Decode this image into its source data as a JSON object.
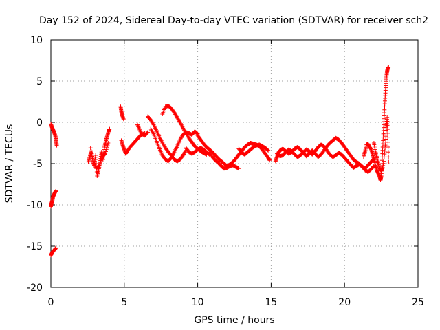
{
  "chart_data": {
    "type": "scatter",
    "title": "Day 152 of 2024, Sidereal Day-to-day VTEC variation (SDTVAR) for receiver sch2",
    "xlabel": "GPS time / hours",
    "ylabel": "SDTVAR / TECUs",
    "xlim": [
      0,
      25
    ],
    "ylim": [
      -20,
      10
    ],
    "x_ticks": [
      0,
      5,
      10,
      15,
      20,
      25
    ],
    "y_ticks": [
      -20,
      -15,
      -10,
      -5,
      0,
      5,
      10
    ],
    "x_tick_labels": [
      "0",
      "5",
      "10",
      "15",
      "20",
      "25"
    ],
    "y_tick_labels": [
      "-20",
      "-15",
      "-10",
      "-5",
      "0",
      "5",
      "10"
    ],
    "grid": true,
    "marker": "+",
    "color": "#ff0000",
    "series": [
      {
        "name": "SDTVAR",
        "segments": [
          [
            [
              0.0,
              -0.2
            ],
            [
              0.08,
              -0.6
            ],
            [
              0.15,
              -0.9
            ],
            [
              0.22,
              -1.2
            ],
            [
              0.3,
              -1.6
            ],
            [
              0.36,
              -2.2
            ],
            [
              0.4,
              -2.8
            ]
          ],
          [
            [
              0.0,
              -10.2
            ],
            [
              0.05,
              -9.8
            ],
            [
              0.1,
              -9.5
            ],
            [
              0.15,
              -9.0
            ],
            [
              0.2,
              -8.8
            ],
            [
              0.28,
              -8.5
            ],
            [
              0.35,
              -8.3
            ]
          ],
          [
            [
              0.0,
              -16.1
            ],
            [
              0.06,
              -15.9
            ],
            [
              0.12,
              -15.7
            ],
            [
              0.2,
              -15.5
            ],
            [
              0.28,
              -15.4
            ],
            [
              0.34,
              -15.2
            ]
          ],
          [
            [
              2.55,
              -4.8
            ],
            [
              2.65,
              -4.2
            ],
            [
              2.75,
              -3.5
            ],
            [
              2.85,
              -4.6
            ],
            [
              2.95,
              -5.2
            ],
            [
              3.05,
              -4.0
            ],
            [
              3.15,
              -6.5
            ],
            [
              3.25,
              -5.8
            ],
            [
              3.35,
              -4.9
            ],
            [
              3.45,
              -3.6
            ],
            [
              3.55,
              -4.5
            ],
            [
              3.65,
              -3.0
            ],
            [
              3.75,
              -2.2
            ],
            [
              3.85,
              -1.6
            ],
            [
              3.95,
              -1.0
            ],
            [
              4.0,
              -0.8
            ]
          ],
          [
            [
              2.7,
              -3.1
            ],
            [
              2.9,
              -4.8
            ],
            [
              3.1,
              -5.6
            ],
            [
              3.3,
              -5.2
            ],
            [
              3.5,
              -4.2
            ],
            [
              3.7,
              -3.8
            ],
            [
              3.9,
              -2.5
            ]
          ],
          [
            [
              4.75,
              1.9
            ],
            [
              4.8,
              1.3
            ],
            [
              4.85,
              0.9
            ],
            [
              4.95,
              0.4
            ]
          ],
          [
            [
              4.8,
              -2.2
            ],
            [
              4.9,
              -2.8
            ],
            [
              5.0,
              -3.3
            ],
            [
              5.1,
              -3.8
            ],
            [
              5.2,
              -3.5
            ],
            [
              5.4,
              -3.0
            ],
            [
              5.6,
              -2.6
            ],
            [
              5.8,
              -2.2
            ],
            [
              6.0,
              -1.8
            ],
            [
              6.2,
              -1.4
            ],
            [
              6.4,
              -1.6
            ],
            [
              6.6,
              -1.2
            ]
          ],
          [
            [
              5.9,
              -0.3
            ],
            [
              6.05,
              -0.9
            ],
            [
              6.2,
              -1.5
            ],
            [
              6.4,
              -1.3
            ]
          ],
          [
            [
              6.6,
              0.7
            ],
            [
              6.8,
              0.3
            ],
            [
              7.0,
              -0.3
            ],
            [
              7.2,
              -1.0
            ],
            [
              7.4,
              -1.8
            ],
            [
              7.6,
              -2.5
            ],
            [
              7.8,
              -3.1
            ],
            [
              8.0,
              -3.6
            ],
            [
              8.2,
              -4.0
            ],
            [
              8.4,
              -4.5
            ],
            [
              8.6,
              -4.7
            ],
            [
              8.8,
              -4.5
            ],
            [
              9.0,
              -4.0
            ],
            [
              9.2,
              -3.4
            ]
          ],
          [
            [
              6.8,
              -0.8
            ],
            [
              7.0,
              -1.4
            ],
            [
              7.2,
              -2.3
            ],
            [
              7.4,
              -3.2
            ],
            [
              7.6,
              -4.0
            ],
            [
              7.8,
              -4.5
            ],
            [
              8.0,
              -4.7
            ],
            [
              8.2,
              -4.3
            ],
            [
              8.4,
              -3.6
            ],
            [
              8.6,
              -2.9
            ],
            [
              8.8,
              -2.1
            ],
            [
              9.0,
              -1.5
            ],
            [
              9.2,
              -1.2
            ],
            [
              9.4,
              -1.3
            ],
            [
              9.6,
              -1.5
            ],
            [
              9.8,
              -1.1
            ],
            [
              10.0,
              -1.4
            ]
          ],
          [
            [
              7.6,
              1.0
            ],
            [
              7.8,
              1.9
            ],
            [
              8.0,
              2.0
            ],
            [
              8.2,
              1.7
            ],
            [
              8.4,
              1.2
            ],
            [
              8.6,
              0.6
            ],
            [
              8.8,
              0.0
            ],
            [
              9.0,
              -0.7
            ],
            [
              9.2,
              -1.3
            ],
            [
              9.4,
              -1.9
            ],
            [
              9.6,
              -2.4
            ],
            [
              9.8,
              -2.9
            ],
            [
              10.0,
              -3.2
            ],
            [
              10.2,
              -3.5
            ],
            [
              10.4,
              -3.7
            ],
            [
              10.6,
              -3.9
            ]
          ],
          [
            [
              9.2,
              -3.1
            ],
            [
              9.4,
              -3.6
            ],
            [
              9.6,
              -3.8
            ],
            [
              9.8,
              -3.6
            ],
            [
              10.0,
              -3.3
            ],
            [
              10.2,
              -3.1
            ],
            [
              10.4,
              -3.3
            ],
            [
              10.6,
              -3.6
            ],
            [
              10.8,
              -3.9
            ]
          ],
          [
            [
              10.0,
              -1.6
            ],
            [
              10.2,
              -2.1
            ],
            [
              10.4,
              -2.6
            ],
            [
              10.6,
              -3.0
            ],
            [
              10.8,
              -3.3
            ],
            [
              11.0,
              -3.6
            ],
            [
              11.2,
              -4.0
            ],
            [
              11.4,
              -4.4
            ],
            [
              11.6,
              -4.7
            ],
            [
              11.8,
              -5.0
            ],
            [
              12.0,
              -5.3
            ],
            [
              12.2,
              -5.1
            ],
            [
              12.4,
              -4.8
            ],
            [
              12.6,
              -4.4
            ],
            [
              12.8,
              -3.9
            ],
            [
              13.0,
              -3.5
            ],
            [
              13.2,
              -3.0
            ],
            [
              13.4,
              -2.7
            ],
            [
              13.6,
              -2.5
            ],
            [
              13.8,
              -2.6
            ],
            [
              14.0,
              -2.7
            ],
            [
              14.2,
              -2.9
            ],
            [
              14.4,
              -3.3
            ],
            [
              14.6,
              -3.8
            ],
            [
              14.8,
              -4.3
            ],
            [
              14.9,
              -4.6
            ]
          ],
          [
            [
              10.8,
              -3.6
            ],
            [
              11.0,
              -4.2
            ],
            [
              11.2,
              -4.6
            ],
            [
              11.4,
              -4.9
            ],
            [
              11.6,
              -5.3
            ],
            [
              11.8,
              -5.6
            ],
            [
              12.0,
              -5.5
            ],
            [
              12.2,
              -5.3
            ],
            [
              12.4,
              -5.2
            ],
            [
              12.6,
              -5.4
            ],
            [
              12.8,
              -5.6
            ]
          ],
          [
            [
              12.8,
              -3.2
            ],
            [
              13.0,
              -3.7
            ],
            [
              13.2,
              -3.9
            ],
            [
              13.4,
              -3.6
            ],
            [
              13.6,
              -3.3
            ],
            [
              13.8,
              -3.0
            ],
            [
              14.0,
              -2.8
            ],
            [
              14.2,
              -2.7
            ],
            [
              14.4,
              -2.9
            ],
            [
              14.6,
              -3.1
            ],
            [
              14.8,
              -3.4
            ]
          ],
          [
            [
              15.3,
              -4.7
            ],
            [
              15.4,
              -4.2
            ],
            [
              15.5,
              -3.7
            ],
            [
              15.6,
              -3.4
            ],
            [
              15.8,
              -3.2
            ],
            [
              16.0,
              -3.5
            ],
            [
              16.2,
              -3.8
            ],
            [
              16.4,
              -3.6
            ],
            [
              16.6,
              -3.2
            ],
            [
              16.8,
              -3.0
            ],
            [
              17.0,
              -3.3
            ],
            [
              17.2,
              -3.7
            ],
            [
              17.4,
              -4.1
            ],
            [
              17.6,
              -3.8
            ],
            [
              17.8,
              -3.4
            ],
            [
              18.0,
              -3.8
            ],
            [
              18.2,
              -4.2
            ],
            [
              18.4,
              -3.9
            ],
            [
              18.6,
              -3.4
            ],
            [
              18.8,
              -2.9
            ],
            [
              19.0,
              -2.5
            ],
            [
              19.2,
              -2.2
            ],
            [
              19.4,
              -1.9
            ],
            [
              19.6,
              -2.1
            ],
            [
              19.8,
              -2.5
            ],
            [
              20.0,
              -3.0
            ],
            [
              20.2,
              -3.5
            ],
            [
              20.4,
              -4.0
            ],
            [
              20.6,
              -4.5
            ],
            [
              20.8,
              -4.8
            ],
            [
              21.0,
              -5.0
            ],
            [
              21.2,
              -5.4
            ],
            [
              21.4,
              -5.6
            ],
            [
              21.6,
              -5.2
            ],
            [
              21.8,
              -4.8
            ],
            [
              22.0,
              -4.4
            ]
          ],
          [
            [
              15.4,
              -3.8
            ],
            [
              15.6,
              -4.1
            ],
            [
              15.8,
              -4.0
            ],
            [
              16.0,
              -3.6
            ],
            [
              16.2,
              -3.3
            ],
            [
              16.4,
              -3.5
            ],
            [
              16.6,
              -3.9
            ],
            [
              16.8,
              -4.2
            ],
            [
              17.0,
              -4.0
            ],
            [
              17.2,
              -3.6
            ],
            [
              17.4,
              -3.3
            ],
            [
              17.6,
              -3.5
            ],
            [
              17.8,
              -3.9
            ],
            [
              18.0,
              -3.5
            ],
            [
              18.2,
              -3.0
            ],
            [
              18.4,
              -2.7
            ],
            [
              18.6,
              -2.9
            ],
            [
              18.8,
              -3.4
            ],
            [
              19.0,
              -3.9
            ],
            [
              19.2,
              -4.2
            ],
            [
              19.4,
              -4.0
            ],
            [
              19.6,
              -3.7
            ],
            [
              19.8,
              -3.9
            ],
            [
              20.0,
              -4.3
            ],
            [
              20.2,
              -4.7
            ],
            [
              20.4,
              -5.1
            ],
            [
              20.6,
              -5.5
            ],
            [
              20.8,
              -5.3
            ],
            [
              21.0,
              -5.1
            ],
            [
              21.2,
              -5.3
            ],
            [
              21.4,
              -5.8
            ],
            [
              21.6,
              -6.0
            ],
            [
              21.8,
              -5.7
            ],
            [
              22.0,
              -5.3
            ]
          ],
          [
            [
              21.3,
              -4.2
            ],
            [
              21.4,
              -3.5
            ],
            [
              21.5,
              -2.7
            ],
            [
              21.6,
              -2.6
            ],
            [
              21.7,
              -3.0
            ],
            [
              21.8,
              -3.2
            ],
            [
              21.9,
              -3.8
            ],
            [
              22.0,
              -4.4
            ],
            [
              22.1,
              -5.2
            ],
            [
              22.2,
              -5.8
            ],
            [
              22.3,
              -6.2
            ],
            [
              22.4,
              -6.6
            ],
            [
              22.45,
              -7.0
            ],
            [
              22.5,
              -6.5
            ],
            [
              22.55,
              -5.0
            ],
            [
              22.6,
              -3.0
            ],
            [
              22.65,
              -1.0
            ],
            [
              22.7,
              0.8
            ],
            [
              22.75,
              2.6
            ],
            [
              22.8,
              4.2
            ],
            [
              22.85,
              5.5
            ],
            [
              22.9,
              6.2
            ],
            [
              22.95,
              6.6
            ],
            [
              23.0,
              6.7
            ]
          ],
          [
            [
              22.0,
              -2.5
            ],
            [
              22.1,
              -3.5
            ],
            [
              22.2,
              -4.3
            ],
            [
              22.3,
              -5.0
            ],
            [
              22.4,
              -5.6
            ],
            [
              22.5,
              -5.9
            ],
            [
              22.6,
              -5.5
            ],
            [
              22.7,
              -4.2
            ],
            [
              22.8,
              -2.4
            ],
            [
              22.85,
              -0.6
            ],
            [
              22.9,
              0.6
            ],
            [
              22.95,
              -1.8
            ],
            [
              23.0,
              -4.8
            ]
          ]
        ]
      }
    ]
  }
}
